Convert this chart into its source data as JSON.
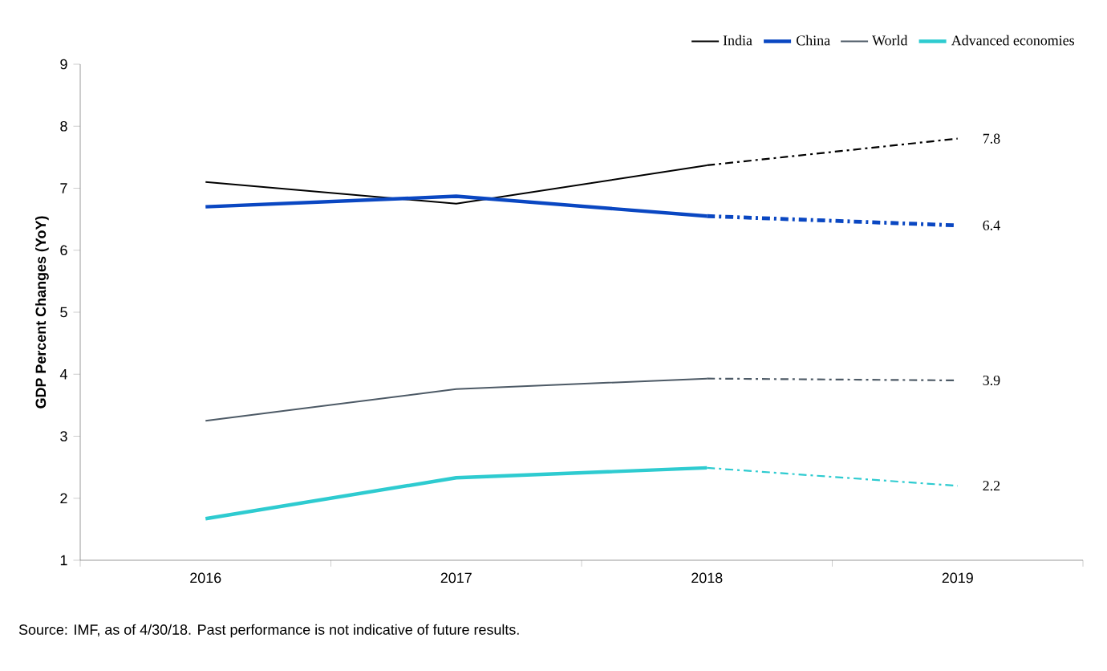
{
  "chart_data": {
    "type": "line",
    "ylabel": "GDP Percent Changes (YoY)",
    "categories": [
      "2016",
      "2017",
      "2018",
      "2019"
    ],
    "ylim": [
      1,
      9
    ],
    "yticks": [
      1,
      2,
      3,
      4,
      5,
      6,
      7,
      8,
      9
    ],
    "legend": "top right",
    "line_style": "solid",
    "series": [
      {
        "name": "India",
        "color": "#000000",
        "values": [
          7.1,
          6.75,
          7.37,
          null
        ]
      },
      {
        "name": "China",
        "color": "#0a47c2",
        "values": [
          6.7,
          6.87,
          6.55,
          null
        ]
      },
      {
        "name": "World",
        "color": "#4d5a66",
        "values": [
          3.25,
          3.76,
          3.93,
          null
        ]
      },
      {
        "name": "Advanced economies",
        "color": "#2ecbd0",
        "values": [
          1.67,
          2.33,
          2.49,
          null
        ]
      },
      {
        "color": "#000000",
        "line_style": "dashed",
        "values": [
          null,
          null,
          7.37,
          7.8
        ],
        "value_labels": [
          null,
          null,
          null,
          "7.8"
        ]
      },
      {
        "color": "#0a47c2",
        "line_style": "dashed",
        "values": [
          null,
          null,
          6.55,
          6.4
        ],
        "value_labels": [
          null,
          null,
          null,
          "6.4"
        ]
      },
      {
        "color": "#4d5a66",
        "line_style": "dashed",
        "values": [
          null,
          null,
          3.93,
          3.9
        ],
        "value_labels": [
          null,
          null,
          null,
          "3.9"
        ]
      },
      {
        "color": "#2ecbd0",
        "line_style": "dashed",
        "values": [
          null,
          null,
          2.49,
          2.2
        ],
        "value_labels": [
          null,
          null,
          null,
          "2.2"
        ]
      }
    ],
    "annotations": [
      "Source: IMF, as of 4/30/18. Past performance is not indicative of future results."
    ]
  }
}
